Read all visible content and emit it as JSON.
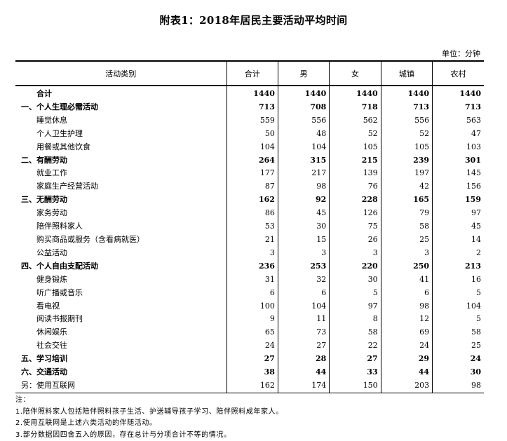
{
  "title": "附表1：2018年居民主要活动平均时间",
  "unit": "单位：分钟",
  "table": {
    "headers": [
      "活动类别",
      "合计",
      "男",
      "女",
      "城镇",
      "农村"
    ],
    "rows": [
      {
        "label": "合计",
        "values": [
          "1440",
          "1440",
          "1440",
          "1440",
          "1440"
        ],
        "bold": true,
        "level": "total"
      },
      {
        "label": "一、个人生理必需活动",
        "values": [
          "713",
          "708",
          "718",
          "713",
          "713"
        ],
        "bold": true,
        "level": "l0"
      },
      {
        "label": "睡觉休息",
        "values": [
          "559",
          "556",
          "562",
          "556",
          "563"
        ],
        "bold": false,
        "level": "l1"
      },
      {
        "label": "个人卫生护理",
        "values": [
          "50",
          "48",
          "52",
          "52",
          "47"
        ],
        "bold": false,
        "level": "l1"
      },
      {
        "label": "用餐或其他饮食",
        "values": [
          "104",
          "104",
          "105",
          "105",
          "103"
        ],
        "bold": false,
        "level": "l1"
      },
      {
        "label": "二、有酬劳动",
        "values": [
          "264",
          "315",
          "215",
          "239",
          "301"
        ],
        "bold": true,
        "level": "l0"
      },
      {
        "label": "就业工作",
        "values": [
          "177",
          "217",
          "139",
          "197",
          "145"
        ],
        "bold": false,
        "level": "l1"
      },
      {
        "label": "家庭生产经营活动",
        "values": [
          "87",
          "98",
          "76",
          "42",
          "156"
        ],
        "bold": false,
        "level": "l1"
      },
      {
        "label": "三、无酬劳动",
        "values": [
          "162",
          "92",
          "228",
          "165",
          "159"
        ],
        "bold": true,
        "level": "l0"
      },
      {
        "label": "家务劳动",
        "values": [
          "86",
          "45",
          "126",
          "79",
          "97"
        ],
        "bold": false,
        "level": "l1"
      },
      {
        "label": "陪伴照料家人",
        "values": [
          "53",
          "30",
          "75",
          "58",
          "45"
        ],
        "bold": false,
        "level": "l1"
      },
      {
        "label": "购买商品或服务（含看病就医）",
        "values": [
          "21",
          "15",
          "26",
          "25",
          "14"
        ],
        "bold": false,
        "level": "l1"
      },
      {
        "label": "公益活动",
        "values": [
          "3",
          "3",
          "3",
          "3",
          "2"
        ],
        "bold": false,
        "level": "l1"
      },
      {
        "label": "四、个人自由支配活动",
        "values": [
          "236",
          "253",
          "220",
          "250",
          "213"
        ],
        "bold": true,
        "level": "l0"
      },
      {
        "label": "健身锻炼",
        "values": [
          "31",
          "32",
          "30",
          "41",
          "16"
        ],
        "bold": false,
        "level": "l1"
      },
      {
        "label": "听广播或音乐",
        "values": [
          "6",
          "6",
          "5",
          "6",
          "5"
        ],
        "bold": false,
        "level": "l1"
      },
      {
        "label": "看电视",
        "values": [
          "100",
          "104",
          "97",
          "98",
          "104"
        ],
        "bold": false,
        "level": "l1"
      },
      {
        "label": "阅读书报期刊",
        "values": [
          "9",
          "11",
          "8",
          "12",
          "5"
        ],
        "bold": false,
        "level": "l1"
      },
      {
        "label": "休闲娱乐",
        "values": [
          "65",
          "73",
          "58",
          "69",
          "58"
        ],
        "bold": false,
        "level": "l1"
      },
      {
        "label": "社会交往",
        "values": [
          "24",
          "27",
          "22",
          "24",
          "25"
        ],
        "bold": false,
        "level": "l1"
      },
      {
        "label": "五、学习培训",
        "values": [
          "27",
          "28",
          "27",
          "29",
          "24"
        ],
        "bold": true,
        "level": "l0"
      },
      {
        "label": "六、交通活动",
        "values": [
          "38",
          "44",
          "33",
          "44",
          "30"
        ],
        "bold": true,
        "level": "l0"
      },
      {
        "label": "另：使用互联网",
        "values": [
          "162",
          "174",
          "150",
          "203",
          "98"
        ],
        "bold": false,
        "level": "l0"
      }
    ]
  },
  "notes": [
    "注：",
    "1.陪伴照料家人包括陪伴照料孩子生活、护送辅导孩子学习、陪伴照料成年家人。",
    "2.使用互联网是上述六类活动的伴随活动。",
    "3.部分数据因四舍五入的原因，存在总计与分项合计不等的情况。"
  ]
}
